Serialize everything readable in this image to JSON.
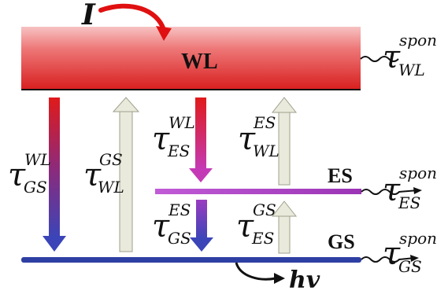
{
  "labels": {
    "current": "I",
    "photon": "hv",
    "wetting_layer": "WL",
    "excited_state": "ES",
    "ground_state": "GS"
  },
  "taus": {
    "wl_spon": {
      "symbol": "τ",
      "sup": "spon",
      "sub": "WL"
    },
    "es_spon": {
      "symbol": "τ",
      "sup": "spon",
      "sub": "ES"
    },
    "gs_spon": {
      "symbol": "τ",
      "sup": "spon",
      "sub": "GS"
    },
    "gs_wl": {
      "symbol": "τ",
      "sup": "WL",
      "sub": "GS"
    },
    "wl_gs": {
      "symbol": "τ",
      "sup": "GS",
      "sub": "WL"
    },
    "es_wl": {
      "symbol": "τ",
      "sup": "WL",
      "sub": "ES"
    },
    "wl_es": {
      "symbol": "τ",
      "sup": "ES",
      "sub": "WL"
    },
    "gs_es": {
      "symbol": "τ",
      "sup": "ES",
      "sub": "GS"
    },
    "es_gs": {
      "symbol": "τ",
      "sup": "GS",
      "sub": "ES"
    }
  },
  "colors": {
    "wl_top": "#f7c2c2",
    "wl_bottom": "#d81f1f",
    "es_left": "#c15bd6",
    "es_right": "#9b34b5",
    "gs_line": "#2e3fa3",
    "capture_arrow_top": "#e01a1a",
    "capture_arrow_bottom": "#3b45b8",
    "escape_arrow": "#e9eadb",
    "escape_arrow_stroke": "#9ea08c",
    "current_arrow": "#e01010"
  }
}
